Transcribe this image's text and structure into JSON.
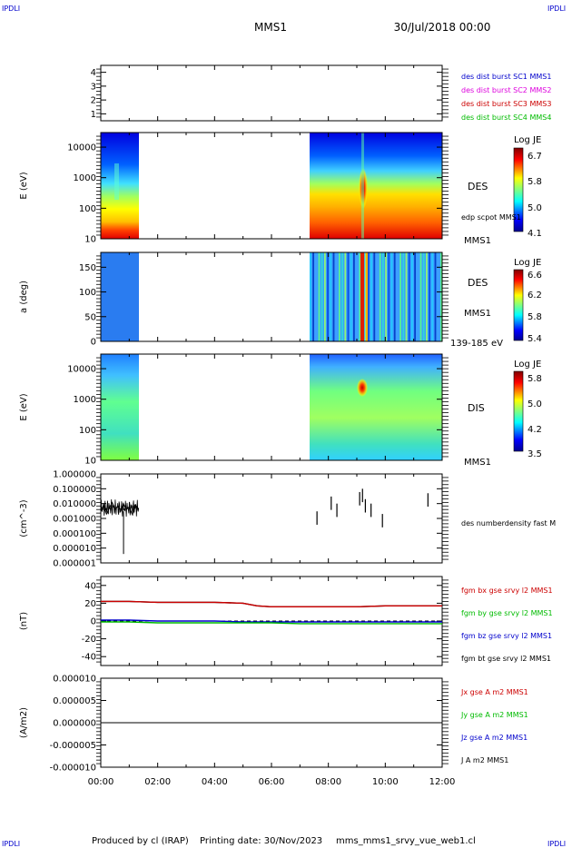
{
  "header": {
    "corner_tl": "IPDLI",
    "corner_tr": "IPDLI",
    "corner_bl": "IPDLI",
    "corner_br": "IPDLI",
    "mission": "MMS1",
    "date": "30/Jul/2018 00:00"
  },
  "footer": {
    "producer": "Produced by cl (IRAP)",
    "printing": "Printing date: 30/Nov/2023",
    "file": "mms_mms1_srvy_vue_web1.cl"
  },
  "colors": {
    "blue": "#0000cc",
    "magenta": "#dd00dd",
    "red": "#cc0000",
    "green": "#00bb00",
    "black": "#000000"
  },
  "chart_data": [
    {
      "id": "panel1",
      "type": "line",
      "ylim": [
        0.5,
        4.5
      ],
      "ticks": [
        "1",
        "2",
        "3",
        "4"
      ],
      "legend": [
        {
          "text": "des dist burst SC1 MMS1",
          "color": "#0000cc"
        },
        {
          "text": "des dist burst SC2 MMS2",
          "color": "#dd00dd"
        },
        {
          "text": "des dist burst SC3 MMS3",
          "color": "#cc0000"
        },
        {
          "text": "des dist burst SC4 MMS4",
          "color": "#00bb00"
        }
      ]
    },
    {
      "id": "panel2",
      "type": "heatmap",
      "ylabel": "E (eV)",
      "yscale": "log",
      "ylim": [
        10,
        30000
      ],
      "ticks": [
        "10",
        "100",
        "1000",
        "10000"
      ],
      "data_intervals_hours": [
        [
          0.0,
          1.33
        ],
        [
          7.33,
          12.0
        ]
      ],
      "right_label": "DES",
      "right_bottom": "MMS1",
      "overlay_label": "edp scpot MMS1",
      "colorbar": {
        "title": "Log JE",
        "ticks": [
          "6.7",
          "5.8",
          "5.0",
          "4.1"
        ]
      }
    },
    {
      "id": "panel3",
      "type": "heatmap",
      "ylabel": "a (deg)",
      "ylim": [
        0,
        180
      ],
      "ticks": [
        "0",
        "50",
        "100",
        "150"
      ],
      "data_intervals_hours": [
        [
          0.0,
          1.33
        ],
        [
          7.33,
          12.0
        ]
      ],
      "right_label": "DES",
      "right_sub": "MMS1",
      "right_bottom": "139-185 eV",
      "colorbar": {
        "title": "Log JE",
        "ticks": [
          "6.6",
          "6.2",
          "5.8",
          "5.4"
        ]
      }
    },
    {
      "id": "panel4",
      "type": "heatmap",
      "ylabel": "E (eV)",
      "yscale": "log",
      "ylim": [
        10,
        30000
      ],
      "ticks": [
        "10",
        "100",
        "1000",
        "10000"
      ],
      "data_intervals_hours": [
        [
          0.0,
          1.33
        ],
        [
          7.33,
          12.0
        ]
      ],
      "right_label": "DIS",
      "right_bottom": "MMS1",
      "colorbar": {
        "title": "Log JE",
        "ticks": [
          "5.8",
          "5.0",
          "4.2",
          "3.5"
        ]
      }
    },
    {
      "id": "panel5",
      "type": "line",
      "ylabel": "(cm^-3)",
      "yscale": "log",
      "ylim": [
        1e-06,
        1.0
      ],
      "ticks": [
        "0.000001",
        "0.000010",
        "0.000100",
        "0.001000",
        "0.010000",
        "0.100000",
        "1.000000"
      ],
      "legend": [
        {
          "text": "des numberdensity fast M",
          "color": "#000000"
        }
      ],
      "series": [
        {
          "x": [
            0.0,
            0.1,
            0.2,
            0.3,
            0.4,
            0.5,
            0.6,
            0.7,
            0.8,
            0.9,
            1.0,
            1.1,
            1.2,
            1.33
          ],
          "y": [
            0.003,
            0.008,
            0.002,
            0.005,
            0.012,
            0.004,
            0.007,
            0.003,
            0.009,
            0.004,
            0.006,
            0.002,
            0.008,
            0.004
          ]
        },
        {
          "x": [
            7.6,
            8.1,
            8.3,
            9.1,
            9.2,
            9.3,
            9.5,
            9.9,
            11.5
          ],
          "y": [
            0.003,
            0.03,
            0.01,
            0.06,
            0.1,
            0.02,
            0.01,
            0.002,
            0.05
          ]
        }
      ]
    },
    {
      "id": "panel6",
      "type": "line",
      "ylabel": "(nT)",
      "ylim": [
        -50,
        50
      ],
      "ticks": [
        "-40",
        "-20",
        "0",
        "20",
        "40"
      ],
      "legend": [
        {
          "text": "fgm bx gse srvy l2 MMS1",
          "color": "#cc0000"
        },
        {
          "text": "fgm by gse srvy l2 MMS1",
          "color": "#00bb00"
        },
        {
          "text": "fgm bz gse srvy l2 MMS1",
          "color": "#0000cc"
        },
        {
          "text": "fgm bt gse srvy l2 MMS1",
          "color": "#000000"
        }
      ],
      "x": [
        0,
        1,
        2,
        3,
        4,
        5,
        5.5,
        6,
        7,
        8,
        9,
        10,
        11,
        12
      ],
      "series": [
        {
          "name": "fgm bx gse srvy l2 MMS1",
          "color": "#cc0000",
          "values": [
            22,
            22,
            21,
            21,
            21,
            20,
            17,
            16,
            16,
            16,
            16,
            17,
            17,
            17
          ]
        },
        {
          "name": "fgm by gse srvy l2 MMS1",
          "color": "#00bb00",
          "values": [
            -1,
            -1,
            -2,
            -2,
            -2,
            -2,
            -2,
            -2,
            -3,
            -3,
            -3,
            -3,
            -3,
            -3
          ]
        },
        {
          "name": "fgm bz gse srvy l2 MMS1",
          "color": "#0000cc",
          "values": [
            1,
            1,
            0,
            0,
            0,
            -1,
            -1,
            -1,
            -1,
            -1,
            -1,
            -1,
            -1,
            -1
          ]
        },
        {
          "name": "fgm bt gse srvy l2 MMS1",
          "color": "#000000",
          "values": [
            22,
            22,
            21,
            21,
            21,
            20,
            17,
            16,
            16,
            16,
            16,
            17,
            17,
            17
          ]
        }
      ]
    },
    {
      "id": "panel7",
      "type": "line",
      "ylabel": "(A/m2)",
      "ylim": [
        -1e-05,
        1e-05
      ],
      "ticks": [
        "-0.000010",
        "-0.000005",
        "0.000000",
        "0.000005",
        "0.000010"
      ],
      "legend": [
        {
          "text": "Jx gse A m2 MMS1",
          "color": "#cc0000"
        },
        {
          "text": "Jy gse A m2 MMS1",
          "color": "#00bb00"
        },
        {
          "text": "Jz gse A m2 MMS1",
          "color": "#0000cc"
        },
        {
          "text": "J A m2 MMS1",
          "color": "#000000"
        }
      ],
      "series": [
        {
          "x": [
            0,
            12
          ],
          "y": [
            0,
            0
          ],
          "color": "#000000"
        }
      ]
    }
  ],
  "xaxis": {
    "ticks": [
      "00:00",
      "02:00",
      "04:00",
      "06:00",
      "08:00",
      "10:00",
      "12:00"
    ],
    "range_hours": [
      0,
      12
    ]
  }
}
